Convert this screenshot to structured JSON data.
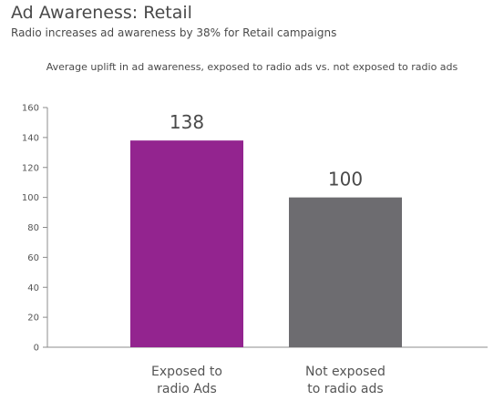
{
  "header": {
    "title": "Ad Awareness: Retail",
    "subtitle": "Radio increases ad awareness by 38% for Retail campaigns",
    "caption": "Average uplift in ad awareness, exposed to radio ads vs. not exposed to radio ads"
  },
  "colors": {
    "exposed_bar": "#93248f",
    "not_exposed_bar": "#6d6c70",
    "axis": "#8c8c8c"
  },
  "chart_data": {
    "type": "bar",
    "categories": [
      [
        "Exposed to",
        "radio Ads"
      ],
      [
        "Not exposed",
        "to radio ads"
      ]
    ],
    "values": [
      138,
      100
    ],
    "data_labels": [
      "138",
      "100"
    ],
    "yticks": [
      0,
      20,
      40,
      60,
      80,
      100,
      120,
      140,
      160
    ],
    "ylim": [
      0,
      160
    ],
    "grid": false,
    "legend": "none"
  }
}
